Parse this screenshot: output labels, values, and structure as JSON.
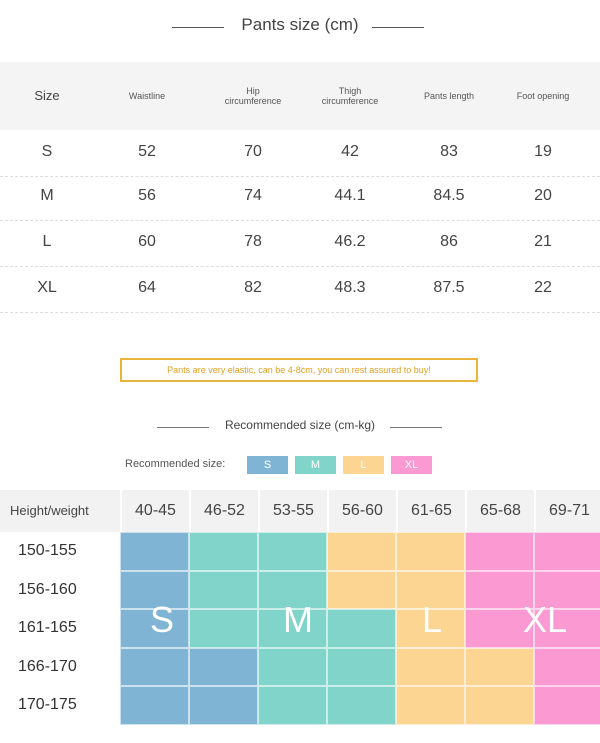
{
  "title": "Pants size (cm)",
  "size_table": {
    "header": [
      "Size",
      "Waistline",
      "Hip circumference",
      "Thigh circumference",
      "Pants length",
      "Foot opening"
    ],
    "rows": [
      [
        "S",
        "52",
        "70",
        "42",
        "83",
        "19"
      ],
      [
        "M",
        "56",
        "74",
        "44.1",
        "84.5",
        "20"
      ],
      [
        "L",
        "60",
        "78",
        "46.2",
        "86",
        "21"
      ],
      [
        "XL",
        "64",
        "82",
        "48.3",
        "87.5",
        "22"
      ]
    ]
  },
  "note": "Pants are very elastic, can be 4-8cm, you can rest assured to buy!",
  "recommend_title": "Recommended size (cm-kg)",
  "legend": {
    "label": "Recommended size:",
    "items": [
      {
        "name": "S",
        "color": "#80b4d4"
      },
      {
        "name": "M",
        "color": "#80d4ca"
      },
      {
        "name": "L",
        "color": "#fcd592"
      },
      {
        "name": "XL",
        "color": "#fa99d2"
      }
    ]
  },
  "grid": {
    "corner": "Height/weight",
    "columns": [
      "40-45",
      "46-52",
      "53-55",
      "56-60",
      "61-65",
      "65-68",
      "69-71"
    ],
    "rows": [
      "150-155",
      "156-160",
      "161-165",
      "166-170",
      "170-175"
    ],
    "cells": [
      [
        "S",
        "M",
        "M",
        "L",
        "L",
        "XL",
        "XL"
      ],
      [
        "S",
        "M",
        "M",
        "L",
        "L",
        "XL",
        "XL"
      ],
      [
        "S",
        "M",
        "M",
        "M",
        "L",
        "XL",
        "XL"
      ],
      [
        "S",
        "S",
        "M",
        "M",
        "L",
        "L",
        "XL"
      ],
      [
        "S",
        "S",
        "M",
        "M",
        "L",
        "L",
        "XL"
      ]
    ],
    "overlay": [
      "S",
      "M",
      "L",
      "XL"
    ]
  }
}
